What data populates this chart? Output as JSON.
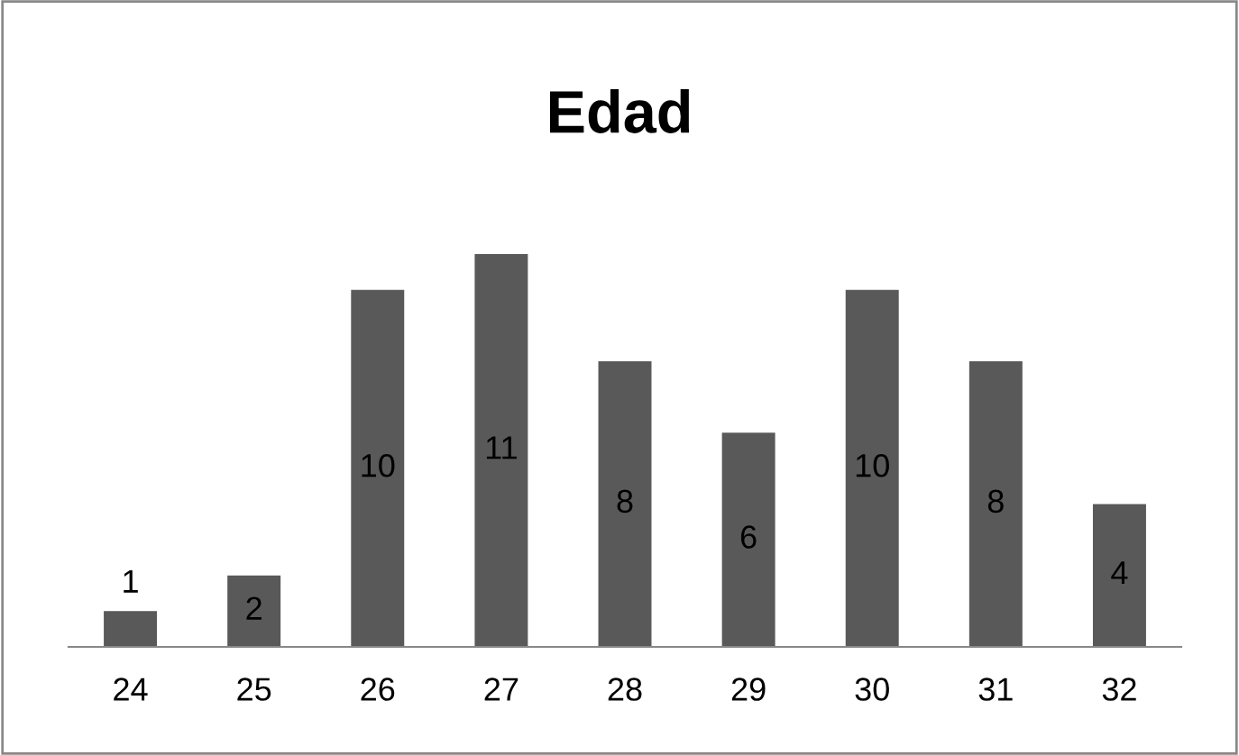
{
  "chart_data": {
    "type": "bar",
    "title": "Edad",
    "categories": [
      "24",
      "25",
      "26",
      "27",
      "28",
      "29",
      "30",
      "31",
      "32"
    ],
    "values": [
      1,
      2,
      10,
      11,
      8,
      6,
      10,
      8,
      4
    ],
    "color": "#595959",
    "data_labels": true,
    "grid": false,
    "legend": false
  }
}
